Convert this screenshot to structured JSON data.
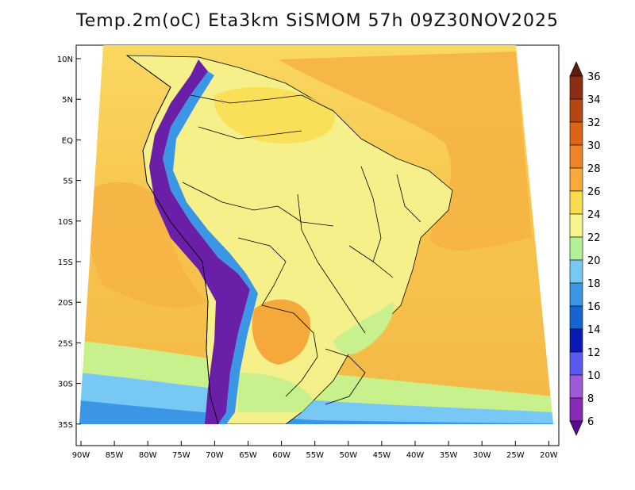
{
  "title": "Temp.2m(oC) Eta3km SiSMOM 57h 09Z30NOV2025",
  "lat_axis": [
    "10N",
    "5N",
    "EQ",
    "5S",
    "10S",
    "15S",
    "20S",
    "25S",
    "30S",
    "35S"
  ],
  "lon_axis": [
    "90W",
    "85W",
    "80W",
    "75W",
    "70W",
    "65W",
    "60W",
    "55W",
    "50W",
    "45W",
    "40W",
    "35W",
    "30W",
    "25W",
    "20W"
  ],
  "colorbar": {
    "labels": [
      "6",
      "8",
      "10",
      "12",
      "14",
      "16",
      "18",
      "20",
      "22",
      "24",
      "26",
      "28",
      "30",
      "32",
      "34",
      "36"
    ],
    "colors": [
      "#5a0a8c",
      "#8a2ab8",
      "#a05ad8",
      "#5a5af0",
      "#0a1ab4",
      "#1464d2",
      "#3c96e6",
      "#78c8f5",
      "#b4f096",
      "#f5f58c",
      "#fadc50",
      "#faaa3c",
      "#f08228",
      "#dc6414",
      "#b44614",
      "#8c2d14",
      "#5a1e0a"
    ]
  },
  "map": {
    "ocean_gradient": [
      "#fde47a",
      "#f9d34a",
      "#f5b445"
    ],
    "land_base": "#f5f08a",
    "andes": "#6a1fa8",
    "border_color": "#000000"
  }
}
